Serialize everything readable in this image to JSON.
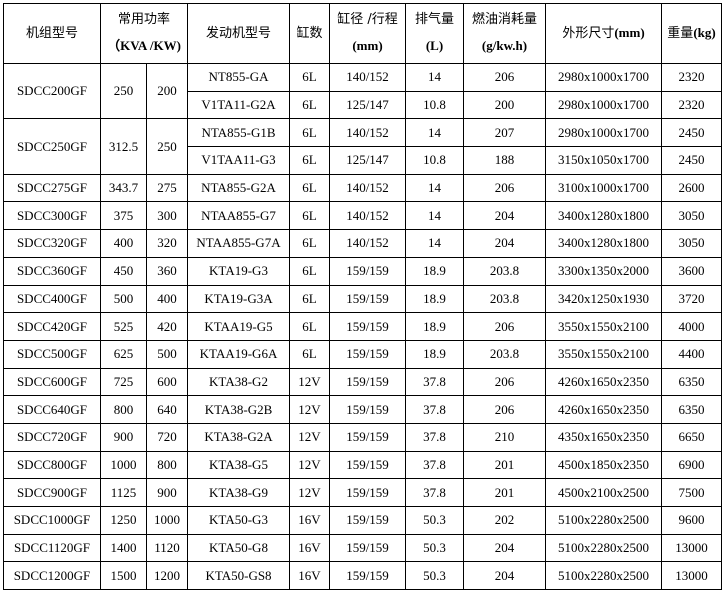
{
  "headers": {
    "model": "机组型号",
    "power": "常用功率",
    "power_unit": "（KVA /KW)",
    "engine": "发动机型号",
    "cylinders": "缸数",
    "bore": "缸径 /行程",
    "bore_unit": "(mm)",
    "displacement": "排气量",
    "displacement_unit": "(L)",
    "fuel": "燃油消耗量",
    "fuel_unit": "(g/kw.h)",
    "dims": "外形尺寸",
    "dims_unit": "(mm)",
    "weight": "重量",
    "weight_unit": "(kg)"
  },
  "groups": [
    {
      "model": "SDCC200GF",
      "kva": "250",
      "kw": "200",
      "engines": [
        {
          "engine": "NT855-GA",
          "cyl": "6L",
          "bore": "140/152",
          "disp": "14",
          "fuel": "206",
          "dims": "2980x1000x1700",
          "weight": "2320"
        },
        {
          "engine": "V1TA11-G2A",
          "cyl": "6L",
          "bore": "125/147",
          "disp": "10.8",
          "fuel": "200",
          "dims": "2980x1000x1700",
          "weight": "2320"
        }
      ]
    },
    {
      "model": "SDCC250GF",
      "kva": "312.5",
      "kw": "250",
      "engines": [
        {
          "engine": "NTA855-G1B",
          "cyl": "6L",
          "bore": "140/152",
          "disp": "14",
          "fuel": "207",
          "dims": "2980x1000x1700",
          "weight": "2450"
        },
        {
          "engine": "V1TAA11-G3",
          "cyl": "6L",
          "bore": "125/147",
          "disp": "10.8",
          "fuel": "188",
          "dims": "3150x1050x1700",
          "weight": "2450"
        }
      ]
    },
    {
      "model": "SDCC275GF",
      "kva": "343.7",
      "kw": "275",
      "engines": [
        {
          "engine": "NTA855-G2A",
          "cyl": "6L",
          "bore": "140/152",
          "disp": "14",
          "fuel": "206",
          "dims": "3100x1000x1700",
          "weight": "2600"
        }
      ]
    },
    {
      "model": "SDCC300GF",
      "kva": "375",
      "kw": "300",
      "engines": [
        {
          "engine": "NTAA855-G7",
          "cyl": "6L",
          "bore": "140/152",
          "disp": "14",
          "fuel": "204",
          "dims": "3400x1280x1800",
          "weight": "3050"
        }
      ]
    },
    {
      "model": "SDCC320GF",
      "kva": "400",
      "kw": "320",
      "engines": [
        {
          "engine": "NTAA855-G7A",
          "cyl": "6L",
          "bore": "140/152",
          "disp": "14",
          "fuel": "204",
          "dims": "3400x1280x1800",
          "weight": "3050"
        }
      ]
    },
    {
      "model": "SDCC360GF",
      "kva": "450",
      "kw": "360",
      "engines": [
        {
          "engine": "KTA19-G3",
          "cyl": "6L",
          "bore": "159/159",
          "disp": "18.9",
          "fuel": "203.8",
          "dims": "3300x1350x2000",
          "weight": "3600"
        }
      ]
    },
    {
      "model": "SDCC400GF",
      "kva": "500",
      "kw": "400",
      "engines": [
        {
          "engine": "KTA19-G3A",
          "cyl": "6L",
          "bore": "159/159",
          "disp": "18.9",
          "fuel": "203.8",
          "dims": "3420x1250x1930",
          "weight": "3720"
        }
      ]
    },
    {
      "model": "SDCC420GF",
      "kva": "525",
      "kw": "420",
      "engines": [
        {
          "engine": "KTAA19-G5",
          "cyl": "6L",
          "bore": "159/159",
          "disp": "18.9",
          "fuel": "206",
          "dims": "3550x1550x2100",
          "weight": "4000"
        }
      ]
    },
    {
      "model": "SDCC500GF",
      "kva": "625",
      "kw": "500",
      "engines": [
        {
          "engine": "KTAA19-G6A",
          "cyl": "6L",
          "bore": "159/159",
          "disp": "18.9",
          "fuel": "203.8",
          "dims": "3550x1550x2100",
          "weight": "4400"
        }
      ]
    },
    {
      "model": "SDCC600GF",
      "kva": "725",
      "kw": "600",
      "engines": [
        {
          "engine": "KTA38-G2",
          "cyl": "12V",
          "bore": "159/159",
          "disp": "37.8",
          "fuel": "206",
          "dims": "4260x1650x2350",
          "weight": "6350"
        }
      ]
    },
    {
      "model": "SDCC640GF",
      "kva": "800",
      "kw": "640",
      "engines": [
        {
          "engine": "KTA38-G2B",
          "cyl": "12V",
          "bore": "159/159",
          "disp": "37.8",
          "fuel": "206",
          "dims": "4260x1650x2350",
          "weight": "6350"
        }
      ]
    },
    {
      "model": "SDCC720GF",
      "kva": "900",
      "kw": "720",
      "engines": [
        {
          "engine": "KTA38-G2A",
          "cyl": "12V",
          "bore": "159/159",
          "disp": "37.8",
          "fuel": "210",
          "dims": "4350x1650x2350",
          "weight": "6650"
        }
      ]
    },
    {
      "model": "SDCC800GF",
      "kva": "1000",
      "kw": "800",
      "engines": [
        {
          "engine": "KTA38-G5",
          "cyl": "12V",
          "bore": "159/159",
          "disp": "37.8",
          "fuel": "201",
          "dims": "4500x1850x2350",
          "weight": "6900"
        }
      ]
    },
    {
      "model": "SDCC900GF",
      "kva": "1125",
      "kw": "900",
      "engines": [
        {
          "engine": "KTA38-G9",
          "cyl": "12V",
          "bore": "159/159",
          "disp": "37.8",
          "fuel": "201",
          "dims": "4500x2100x2500",
          "weight": "7500"
        }
      ]
    },
    {
      "model": "SDCC1000GF",
      "kva": "1250",
      "kw": "1000",
      "engines": [
        {
          "engine": "KTA50-G3",
          "cyl": "16V",
          "bore": "159/159",
          "disp": "50.3",
          "fuel": "202",
          "dims": "5100x2280x2500",
          "weight": "9600"
        }
      ]
    },
    {
      "model": "SDCC1120GF",
      "kva": "1400",
      "kw": "1120",
      "engines": [
        {
          "engine": "KTA50-G8",
          "cyl": "16V",
          "bore": "159/159",
          "disp": "50.3",
          "fuel": "204",
          "dims": "5100x2280x2500",
          "weight": "13000"
        }
      ]
    },
    {
      "model": "SDCC1200GF",
      "kva": "1500",
      "kw": "1200",
      "engines": [
        {
          "engine": "KTA50-GS8",
          "cyl": "16V",
          "bore": "159/159",
          "disp": "50.3",
          "fuel": "204",
          "dims": "5100x2280x2500",
          "weight": "13000"
        }
      ]
    }
  ]
}
